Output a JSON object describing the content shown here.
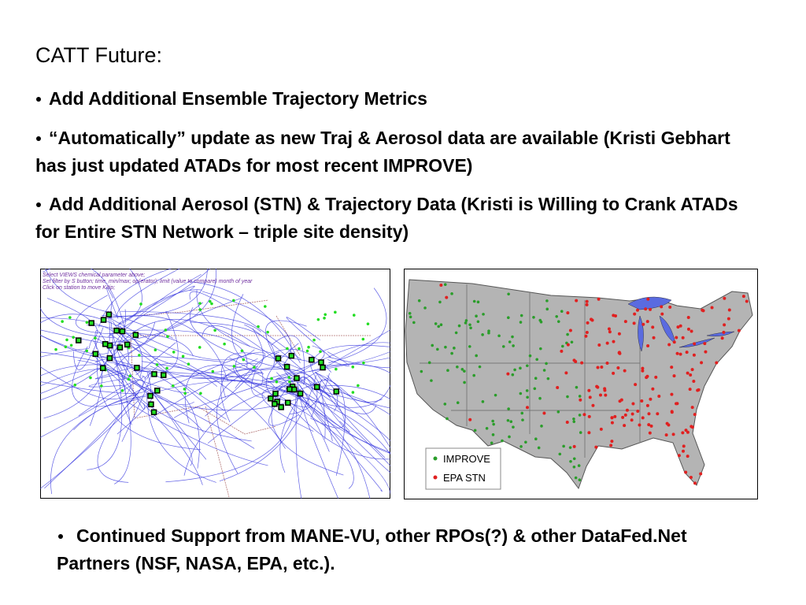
{
  "title": "CATT Future:",
  "bullets": [
    "Add Additional Ensemble Trajectory Metrics",
    "“Automatically” update as new Traj & Aerosol data are available (Kristi Gebhart has just updated ATADs for most recent IMPROVE)",
    "Add Additional Aerosol (STN) & Trajectory Data (Kristi is Willing to Crank ATADs for Entire STN Network – triple site density)"
  ],
  "left_map": {
    "instructions": [
      "Select VIEWS chemical parameter above;",
      "Set filter by S button; time_min/max; op(erator); limit (value to compare) month of year",
      "Click on station to move K/tip;"
    ]
  },
  "right_map": {
    "legend": [
      "IMPROVE",
      "EPA STN"
    ]
  },
  "footer_bullet": "Continued Support from MANE-VU, other RPOs(?) & other DataFed.Net Partners (NSF, NASA, EPA, etc.)."
}
